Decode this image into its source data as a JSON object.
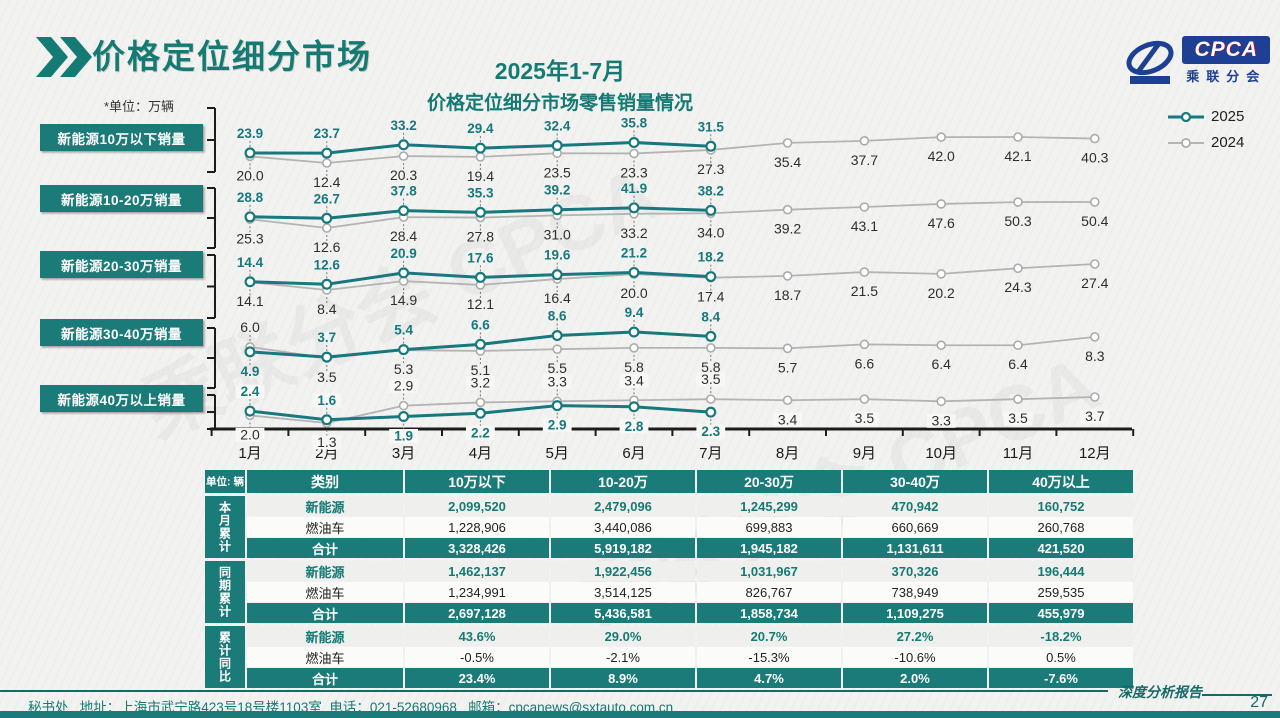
{
  "header": {
    "title": "价格定位细分市场",
    "subtitle_line1": "2025年1-7月",
    "subtitle_line2": "价格定位细分市场零售销量情况",
    "unit_note": "*单位：万辆",
    "logo": {
      "text": "CPCA",
      "subtext": "乘联分会"
    }
  },
  "colors": {
    "teal": "#1b7b78",
    "line_2025": "#17787d",
    "line_2024": "#b4b4b4",
    "navy": "#1d3f94"
  },
  "legend": [
    {
      "label": "2025",
      "color": "#17787d"
    },
    {
      "label": "2024",
      "color": "#b4b4b4"
    }
  ],
  "chart_data": {
    "type": "line",
    "categories": [
      "1月",
      "2月",
      "3月",
      "4月",
      "5月",
      "6月",
      "7月",
      "8月",
      "9月",
      "10月",
      "11月",
      "12月"
    ],
    "unit": "万辆",
    "legend_position": "top-right",
    "grid": false,
    "panels": [
      {
        "label": "新能源10万以下销量",
        "series": [
          {
            "name": "2025",
            "values": [
              23.9,
              23.7,
              33.2,
              29.4,
              32.4,
              35.8,
              31.5
            ]
          },
          {
            "name": "2024",
            "values": [
              20.0,
              12.4,
              20.3,
              19.4,
              23.5,
              23.3,
              27.3,
              35.4,
              37.7,
              42.0,
              42.1,
              40.3
            ]
          }
        ]
      },
      {
        "label": "新能源10-20万销量",
        "series": [
          {
            "name": "2025",
            "values": [
              28.8,
              26.7,
              37.8,
              35.3,
              39.2,
              41.9,
              38.2
            ]
          },
          {
            "name": "2024",
            "values": [
              25.3,
              12.6,
              28.4,
              27.8,
              31.0,
              33.2,
              34.0,
              39.2,
              43.1,
              47.6,
              50.3,
              50.4
            ]
          }
        ]
      },
      {
        "label": "新能源20-30万销量",
        "series": [
          {
            "name": "2025",
            "values": [
              14.4,
              12.6,
              20.9,
              17.6,
              19.6,
              21.2,
              18.2
            ]
          },
          {
            "name": "2024",
            "values": [
              14.1,
              8.4,
              14.9,
              12.1,
              16.4,
              20.0,
              17.4,
              18.7,
              21.5,
              20.2,
              24.3,
              27.4
            ]
          }
        ]
      },
      {
        "label": "新能源30-40万销量",
        "series": [
          {
            "name": "2025",
            "values": [
              4.9,
              3.7,
              5.4,
              6.6,
              8.6,
              9.4,
              8.4
            ]
          },
          {
            "name": "2024",
            "values": [
              6.0,
              3.5,
              5.3,
              5.1,
              5.5,
              5.8,
              5.8,
              5.7,
              6.6,
              6.4,
              6.4,
              8.3
            ]
          }
        ]
      },
      {
        "label": "新能源40万以上销量",
        "series": [
          {
            "name": "2025",
            "values": [
              2.4,
              1.6,
              1.9,
              2.2,
              2.9,
              2.8,
              2.3
            ]
          },
          {
            "name": "2024",
            "values": [
              2.0,
              1.3,
              2.9,
              3.2,
              3.3,
              3.4,
              3.5,
              3.4,
              3.5,
              3.3,
              3.5,
              3.7
            ]
          }
        ]
      }
    ]
  },
  "table": {
    "unit_label": "单位: 辆",
    "col_headers": [
      "类别",
      "10万以下",
      "10-20万",
      "20-30万",
      "30-40万",
      "40万以上"
    ],
    "groups": [
      {
        "label": "本月累计",
        "rows": [
          {
            "name": "新能源",
            "values": [
              "2,099,520",
              "2,479,096",
              "1,245,299",
              "470,942",
              "160,752"
            ]
          },
          {
            "name": "燃油车",
            "values": [
              "1,228,906",
              "3,440,086",
              "699,883",
              "660,669",
              "260,768"
            ]
          },
          {
            "name": "合计",
            "values": [
              "3,328,426",
              "5,919,182",
              "1,945,182",
              "1,131,611",
              "421,520"
            ]
          }
        ]
      },
      {
        "label": "同期累计",
        "rows": [
          {
            "name": "新能源",
            "values": [
              "1,462,137",
              "1,922,456",
              "1,031,967",
              "370,326",
              "196,444"
            ]
          },
          {
            "name": "燃油车",
            "values": [
              "1,234,991",
              "3,514,125",
              "826,767",
              "738,949",
              "259,535"
            ]
          },
          {
            "name": "合计",
            "values": [
              "2,697,128",
              "5,436,581",
              "1,858,734",
              "1,109,275",
              "455,979"
            ]
          }
        ]
      },
      {
        "label": "累计同比",
        "rows": [
          {
            "name": "新能源",
            "values": [
              "43.6%",
              "29.0%",
              "20.7%",
              "27.2%",
              "-18.2%"
            ]
          },
          {
            "name": "燃油车",
            "values": [
              "-0.5%",
              "-2.1%",
              "-15.3%",
              "-10.6%",
              "0.5%"
            ]
          },
          {
            "name": "合计",
            "values": [
              "23.4%",
              "8.9%",
              "4.7%",
              "2.0%",
              "-7.6%"
            ]
          }
        ]
      }
    ]
  },
  "footer": {
    "left": "秘书处   地址：上海市武宁路423号18号楼1103室  电话：021-52680968   邮箱：cpcanews@sxtauto.com.cn",
    "report_label": "深度分析报告",
    "page_number": "27"
  }
}
